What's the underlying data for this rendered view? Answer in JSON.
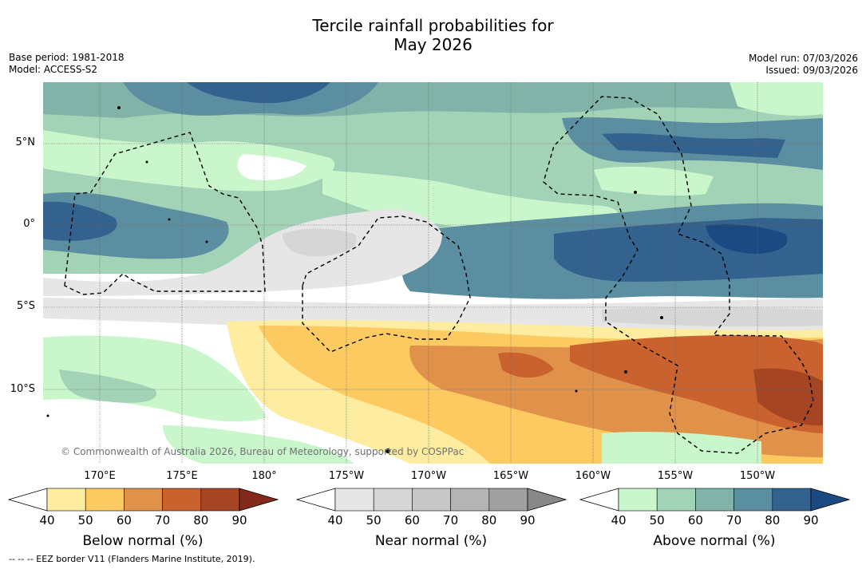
{
  "title": {
    "line1": "Tercile rainfall probabilities for",
    "line2": "May 2026"
  },
  "meta_left": {
    "base_period": "Base period: 1981-2018",
    "model": "Model: ACCESS-S2"
  },
  "meta_right": {
    "model_run": "Model run: 07/03/2026",
    "issued": "Issued: 09/03/2026"
  },
  "lat_labels": [
    "5°N",
    "0°",
    "5°S",
    "10°S"
  ],
  "lon_labels": [
    "170°E",
    "175°E",
    "180°",
    "175°W",
    "170°W",
    "165°W",
    "160°W",
    "155°W",
    "150°W"
  ],
  "copyright": "© Commonwealth of Australia 2026, Bureau of Meteorology, supported by COSPPac",
  "colorbars": [
    {
      "name": "below",
      "label": "Below normal (%)",
      "ticks": [
        "40",
        "50",
        "60",
        "70",
        "80",
        "90"
      ],
      "colors": [
        "#ffffff",
        "#feeda0",
        "#fdca62",
        "#e0924a",
        "#c9622f",
        "#a64523",
        "#832a1d"
      ]
    },
    {
      "name": "near",
      "label": "Near normal (%)",
      "ticks": [
        "40",
        "50",
        "60",
        "70",
        "80",
        "90"
      ],
      "colors": [
        "#ffffff",
        "#e6e6e6",
        "#d6d6d6",
        "#c8c8c8",
        "#b4b4b4",
        "#a0a0a0",
        "#888888"
      ]
    },
    {
      "name": "above",
      "label": "Above normal (%)",
      "ticks": [
        "40",
        "50",
        "60",
        "70",
        "80",
        "90"
      ],
      "colors": [
        "#ffffff",
        "#c9f7cb",
        "#a3d3b6",
        "#82b3a8",
        "#5b8ea0",
        "#34628f",
        "#1b4a82"
      ]
    }
  ],
  "eez_note": "--  --  -- EEZ border V11 (Flanders Marine Institute, 2019)."
}
